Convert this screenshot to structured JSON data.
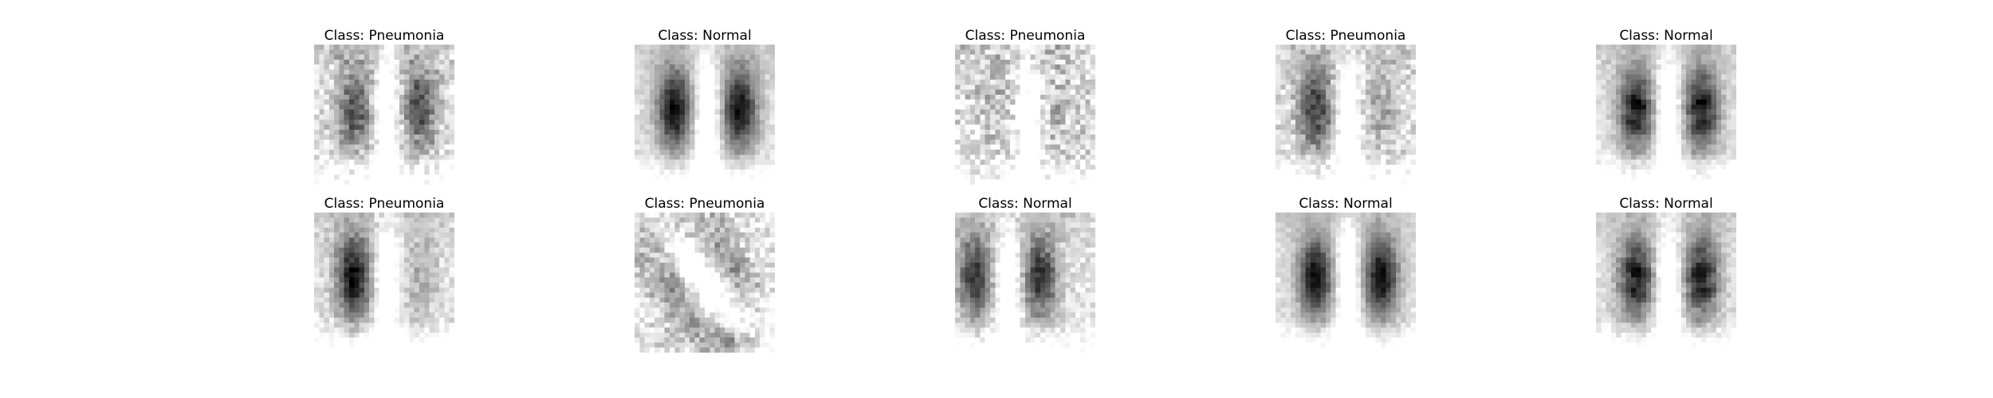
{
  "grid": {
    "rows": 2,
    "cols": 5,
    "colormap": "grayscale",
    "image_resolution": "28x28"
  },
  "panels": [
    {
      "title": "Class: Pneumonia",
      "image": {
        "kind": "chest-xray",
        "style": "hazy-bilateral",
        "seed": 11
      }
    },
    {
      "title": "Class: Normal",
      "image": {
        "kind": "chest-xray",
        "style": "clear-lungs",
        "seed": 23
      }
    },
    {
      "title": "Class: Pneumonia",
      "image": {
        "kind": "chest-xray",
        "style": "diffuse-opacity",
        "seed": 37
      }
    },
    {
      "title": "Class: Pneumonia",
      "image": {
        "kind": "chest-xray",
        "style": "hazy-left",
        "seed": 41
      }
    },
    {
      "title": "Class: Normal",
      "image": {
        "kind": "chest-xray",
        "style": "clear-lungs-ribs",
        "seed": 53
      }
    },
    {
      "title": "Class: Pneumonia",
      "image": {
        "kind": "chest-xray",
        "style": "hazy-right-lung",
        "seed": 67
      }
    },
    {
      "title": "Class: Pneumonia",
      "image": {
        "kind": "chest-xray",
        "style": "rotated-hazy",
        "seed": 71
      }
    },
    {
      "title": "Class: Normal",
      "image": {
        "kind": "chest-xray",
        "style": "shifted-view",
        "seed": 83
      }
    },
    {
      "title": "Class: Normal",
      "image": {
        "kind": "chest-xray",
        "style": "clear-lungs",
        "seed": 97
      }
    },
    {
      "title": "Class: Normal",
      "image": {
        "kind": "chest-xray",
        "style": "clear-lungs-ribs",
        "seed": 101
      }
    }
  ]
}
